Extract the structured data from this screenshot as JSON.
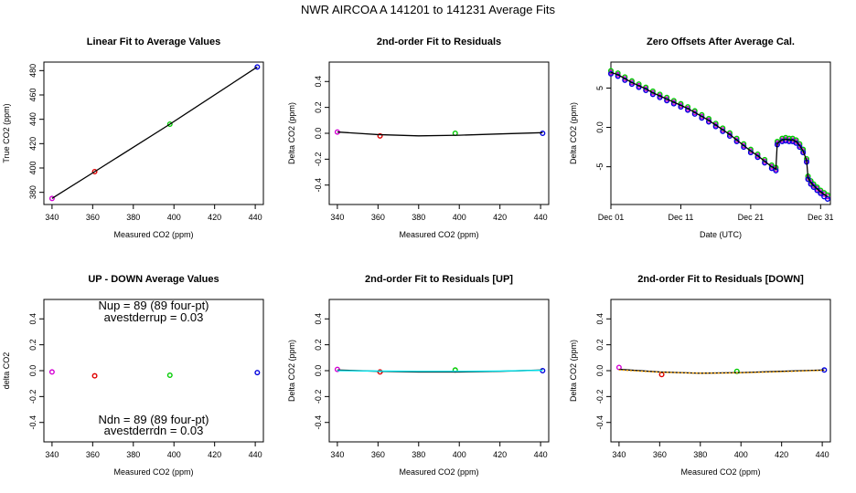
{
  "title": "NWR   AIRCOA A   141201 to 141231   Average Fits",
  "chart_data": [
    {
      "id": "linear",
      "type": "line",
      "title": "Linear Fit to Average Values",
      "xlabel": "Measured CO2 (ppm)",
      "ylabel": "True CO2 (ppm)",
      "xlim": [
        336,
        444
      ],
      "ylim": [
        370,
        487
      ],
      "xticks": [
        340,
        360,
        380,
        400,
        420,
        440
      ],
      "yticks": [
        380,
        400,
        420,
        440,
        460,
        480
      ],
      "x": [
        340,
        361,
        398,
        441
      ],
      "series": [
        {
          "values": [
            375,
            397,
            436,
            483
          ],
          "colors": [
            "#d400d4",
            "#e00000",
            "#00cc00",
            "#0000dd"
          ],
          "style": "points"
        },
        {
          "values": [
            375,
            397,
            436,
            483
          ],
          "color": "#000000",
          "style": "line"
        }
      ]
    },
    {
      "id": "resid",
      "type": "line",
      "title": "2nd-order Fit to Residuals",
      "xlabel": "Measured CO2 (ppm)",
      "ylabel": "Delta CO2 (ppm)",
      "xlim": [
        336,
        444
      ],
      "ylim": [
        -0.55,
        0.55
      ],
      "xticks": [
        340,
        360,
        380,
        400,
        420,
        440
      ],
      "yticks": [
        -0.4,
        -0.2,
        0.0,
        0.2,
        0.4
      ],
      "x": [
        340,
        361,
        398,
        441
      ],
      "series": [
        {
          "values": [
            0.01,
            -0.02,
            0.0,
            0.0
          ],
          "colors": [
            "#d400d4",
            "#e00000",
            "#00cc00",
            "#0000dd"
          ],
          "style": "points"
        },
        {
          "x": [
            340,
            360,
            380,
            400,
            420,
            441
          ],
          "values": [
            0.01,
            -0.01,
            -0.02,
            -0.015,
            -0.005,
            0.005
          ],
          "color": "#000000",
          "style": "line"
        }
      ]
    },
    {
      "id": "zero",
      "type": "scatter",
      "title": "Zero Offsets After Average Cal.",
      "xlabel": "Date (UTC)",
      "ylabel": "Delta CO2 (ppm)",
      "xlim": [
        0,
        31.4
      ],
      "ylim": [
        -9.8,
        8.3
      ],
      "xticks": [
        0,
        10,
        20,
        30
      ],
      "xticklabels": [
        "Dec 01",
        "Dec 11",
        "Dec 21",
        "Dec 31"
      ],
      "yticks": [
        -5,
        0,
        5
      ],
      "x": [
        0,
        1,
        2,
        3,
        4,
        5,
        6,
        7,
        8,
        9,
        10,
        11,
        12,
        13,
        14,
        15,
        16,
        17,
        18,
        19,
        20,
        21,
        22,
        23,
        23.6,
        23.8,
        24.5,
        25,
        25.5,
        26,
        26.5,
        27,
        27.5,
        28,
        28.2,
        28.6,
        29,
        29.5,
        30,
        30.5,
        31
      ],
      "series": [
        {
          "name": "",
          "values": [
            7.0,
            6.7,
            6.2,
            5.7,
            5.3,
            4.9,
            4.4,
            4.0,
            3.6,
            3.2,
            2.8,
            2.4,
            1.9,
            1.4,
            0.9,
            0.3,
            -0.3,
            -0.9,
            -1.6,
            -2.3,
            -3.0,
            -3.6,
            -4.3,
            -5.0,
            -5.3,
            -2.0,
            -1.6,
            -1.5,
            -1.6,
            -1.6,
            -1.8,
            -2.3,
            -3.0,
            -4.2,
            -6.4,
            -7.0,
            -7.4,
            -7.8,
            -8.2,
            -8.5,
            -8.8
          ],
          "color": "#d400d4",
          "style": "points"
        },
        {
          "name": "",
          "values": [
            7.2,
            6.9,
            6.4,
            5.9,
            5.5,
            5.1,
            4.6,
            4.2,
            3.8,
            3.4,
            3.0,
            2.6,
            2.1,
            1.6,
            1.1,
            0.5,
            -0.1,
            -0.7,
            -1.4,
            -2.1,
            -2.8,
            -3.4,
            -4.1,
            -4.8,
            -5.1,
            -1.8,
            -1.4,
            -1.3,
            -1.4,
            -1.4,
            -1.6,
            -2.1,
            -2.8,
            -4.0,
            -6.2,
            -6.8,
            -7.2,
            -7.6,
            -8.0,
            -8.3,
            -8.6
          ],
          "color": "#00cc00",
          "style": "points"
        },
        {
          "name": "",
          "values": [
            6.8,
            6.5,
            6.0,
            5.5,
            5.1,
            4.7,
            4.2,
            3.8,
            3.4,
            3.0,
            2.6,
            2.2,
            1.7,
            1.2,
            0.7,
            0.1,
            -0.5,
            -1.1,
            -1.8,
            -2.5,
            -3.2,
            -3.8,
            -4.5,
            -5.2,
            -5.5,
            -2.2,
            -1.8,
            -1.7,
            -1.8,
            -1.8,
            -2.0,
            -2.5,
            -3.2,
            -4.4,
            -6.6,
            -7.2,
            -7.6,
            -8.0,
            -8.4,
            -8.8,
            -9.1
          ],
          "color": "#0000dd",
          "style": "points"
        },
        {
          "name": "",
          "values": [
            7.0,
            6.7,
            6.2,
            5.7,
            5.3,
            4.9,
            4.4,
            4.0,
            3.6,
            3.2,
            2.8,
            2.4,
            1.9,
            1.4,
            0.9,
            0.3,
            -0.3,
            -0.9,
            -1.6,
            -2.3,
            -3.0,
            -3.6,
            -4.3,
            -5.0,
            -5.3,
            -2.0,
            -1.6,
            -1.5,
            -1.6,
            -1.6,
            -1.8,
            -2.3,
            -3.0,
            -4.2,
            -6.4,
            -7.0,
            -7.4,
            -7.8,
            -8.2,
            -8.5,
            -8.8
          ],
          "color": "#000000",
          "style": "line"
        }
      ]
    },
    {
      "id": "updown",
      "type": "scatter",
      "title": "UP - DOWN Average Values",
      "xlabel": "Measured CO2 (ppm)",
      "ylabel": "delta CO2",
      "xlim": [
        336,
        444
      ],
      "ylim": [
        -0.55,
        0.55
      ],
      "xticks": [
        340,
        360,
        380,
        400,
        420,
        440
      ],
      "yticks": [
        -0.4,
        -0.2,
        0.0,
        0.2,
        0.4
      ],
      "x": [
        340,
        361,
        398,
        441
      ],
      "series": [
        {
          "values": [
            -0.01,
            -0.04,
            -0.035,
            -0.015
          ],
          "colors": [
            "#d400d4",
            "#e00000",
            "#00cc00",
            "#0000dd"
          ],
          "style": "points"
        }
      ],
      "annotations": {
        "nup": "Nup = 89 (89 four-pt)",
        "avestderrup": "avestderrup =  0.03",
        "ndn": "Ndn = 89 (89 four-pt)",
        "avestderrdn": "avestderrdn =  0.03"
      }
    },
    {
      "id": "resid_up",
      "type": "line",
      "title": "2nd-order Fit to Residuals [UP]",
      "xlabel": "Measured CO2 (ppm)",
      "ylabel": "Delta CO2 (ppm)",
      "xlim": [
        336,
        444
      ],
      "ylim": [
        -0.55,
        0.55
      ],
      "xticks": [
        340,
        360,
        380,
        400,
        420,
        440
      ],
      "yticks": [
        -0.4,
        -0.2,
        0.0,
        0.2,
        0.4
      ],
      "x": [
        340,
        361,
        398,
        441
      ],
      "series": [
        {
          "values": [
            0.01,
            -0.01,
            0.005,
            0.0
          ],
          "colors": [
            "#d400d4",
            "#e00000",
            "#00cc00",
            "#0000dd"
          ],
          "style": "points"
        },
        {
          "x": [
            340,
            360,
            380,
            400,
            420,
            441
          ],
          "values": [
            0.005,
            -0.005,
            -0.01,
            -0.01,
            -0.005,
            0.005
          ],
          "color": "#000000",
          "style": "line"
        },
        {
          "x": [
            340,
            360,
            380,
            400,
            420,
            441
          ],
          "values": [
            0.0,
            -0.003,
            -0.005,
            -0.005,
            -0.003,
            0.003
          ],
          "color": "#00e5ee",
          "style": "line"
        }
      ]
    },
    {
      "id": "resid_down",
      "type": "line",
      "title": "2nd-order Fit to Residuals [DOWN]",
      "xlabel": "Measured CO2 (ppm)",
      "ylabel": "Delta CO2 (ppm)",
      "xlim": [
        336,
        444
      ],
      "ylim": [
        -0.55,
        0.55
      ],
      "xticks": [
        340,
        360,
        380,
        400,
        420,
        440
      ],
      "yticks": [
        -0.4,
        -0.2,
        0.0,
        0.2,
        0.4
      ],
      "x": [
        340,
        361,
        398,
        441
      ],
      "series": [
        {
          "values": [
            0.025,
            -0.03,
            -0.005,
            0.005
          ],
          "colors": [
            "#d400d4",
            "#e00000",
            "#00cc00",
            "#0000dd"
          ],
          "style": "points"
        },
        {
          "x": [
            340,
            360,
            380,
            400,
            420,
            441
          ],
          "values": [
            0.01,
            -0.01,
            -0.02,
            -0.015,
            -0.005,
            0.005
          ],
          "color": "#000000",
          "style": "line"
        },
        {
          "x": [
            340,
            360,
            380,
            400,
            420,
            441
          ],
          "values": [
            0.005,
            -0.012,
            -0.02,
            -0.017,
            -0.008,
            0.003
          ],
          "color": "#ffa500",
          "style": "dashed"
        }
      ]
    }
  ]
}
